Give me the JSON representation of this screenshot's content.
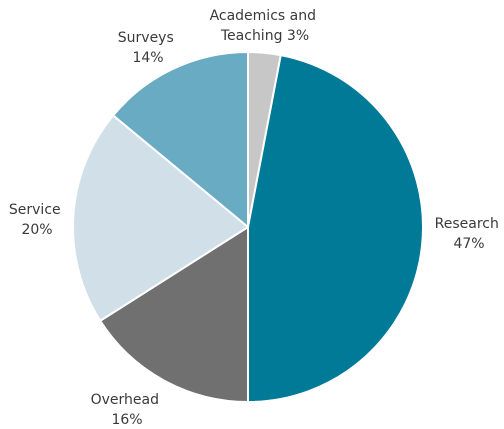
{
  "chart_data": {
    "type": "pie",
    "title": "",
    "slices": [
      {
        "label": "Academics and Teaching",
        "label_lines": [
          "Academics and",
          "Teaching 3%"
        ],
        "value": 3,
        "color": "#c7c7c7"
      },
      {
        "label": "Research",
        "label_lines": [
          "Research",
          "47%"
        ],
        "value": 47,
        "color": "#007a96"
      },
      {
        "label": "Overhead",
        "label_lines": [
          "Overhead",
          "16%"
        ],
        "value": 16,
        "color": "#707070"
      },
      {
        "label": "Service",
        "label_lines": [
          "Service",
          "20%"
        ],
        "value": 20,
        "color": "#d0dfe8"
      },
      {
        "label": "Surveys",
        "label_lines": [
          "Surveys",
          "14%"
        ],
        "value": 14,
        "color": "#6aabc4"
      }
    ],
    "start_angle_deg": 0,
    "direction": "clockwise",
    "slice_border_color": "#ffffff"
  }
}
